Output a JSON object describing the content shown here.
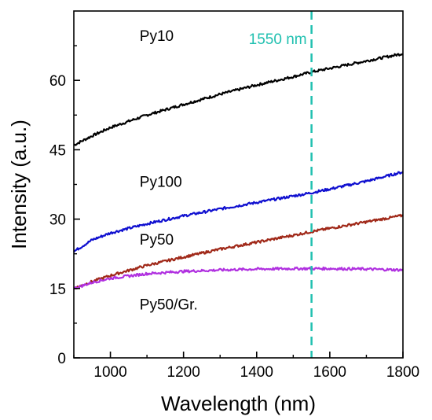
{
  "chart_data": {
    "type": "line",
    "title": "",
    "xlabel": "Wavelength (nm)",
    "ylabel": "Intensity (a.u.)",
    "xlim": [
      900,
      1800
    ],
    "ylim": [
      0,
      75
    ],
    "x_ticks": [
      1000,
      1200,
      1400,
      1600,
      1800
    ],
    "y_ticks": [
      0,
      15,
      30,
      45,
      60
    ],
    "grid": false,
    "legend": "none",
    "x": [
      900,
      950,
      1000,
      1100,
      1200,
      1300,
      1400,
      1500,
      1550,
      1600,
      1700,
      1800
    ],
    "series": [
      {
        "name": "Py10",
        "color": "#000000",
        "values": [
          46.0,
          48.0,
          49.8,
          52.5,
          54.8,
          57.0,
          59.0,
          60.8,
          61.8,
          62.6,
          64.2,
          65.8
        ]
      },
      {
        "name": "Py100",
        "color": "#1010d0",
        "values": [
          23.0,
          25.5,
          27.0,
          29.0,
          30.7,
          32.2,
          33.6,
          35.0,
          35.7,
          36.5,
          38.2,
          40.2
        ]
      },
      {
        "name": "Py50",
        "color": "#a02818",
        "values": [
          15.0,
          16.5,
          17.8,
          20.0,
          21.8,
          23.5,
          25.0,
          26.5,
          27.3,
          28.0,
          29.4,
          30.8
        ]
      },
      {
        "name": "Py50/Gr.",
        "color": "#b030e0",
        "values": [
          15.0,
          16.3,
          17.2,
          18.2,
          18.7,
          19.0,
          19.2,
          19.3,
          19.3,
          19.3,
          19.2,
          19.0
        ]
      }
    ],
    "annotations": [
      {
        "type": "vline",
        "x": 1550,
        "label": "1550 nm",
        "color": "#20c0b0"
      }
    ]
  }
}
